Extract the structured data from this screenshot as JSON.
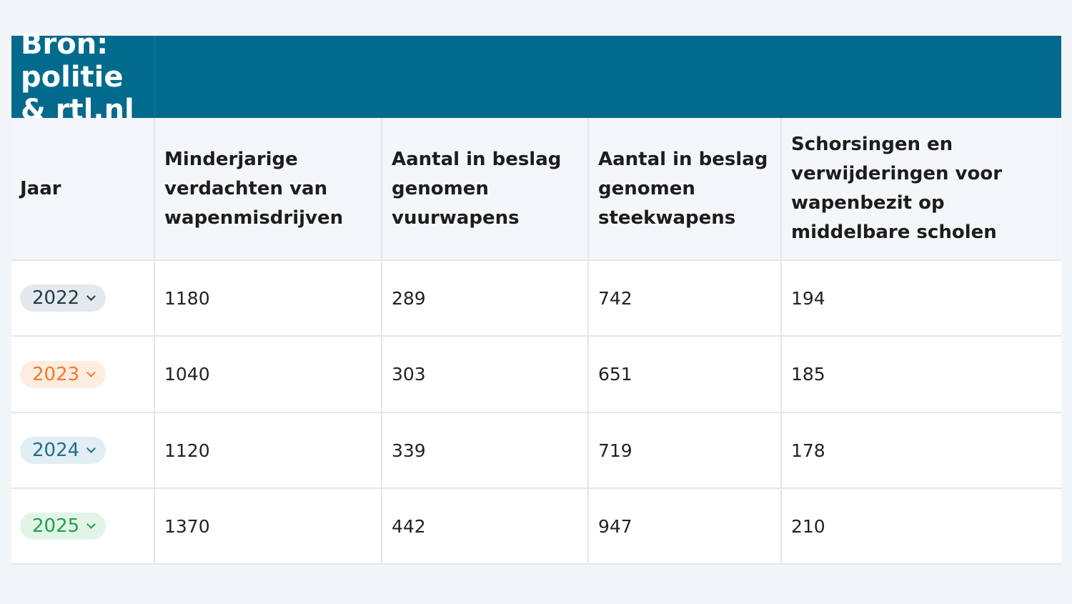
{
  "source_title": "Bron: politie & rtl.nl",
  "headers": [
    "Jaar",
    "Minderjarige verdachten van wapenmisdrijven",
    "Aantal in beslag genomen vuurwapens",
    "Aantal in beslag genomen steekwapens",
    "Schorsingen en verwijderingen voor wapenbezit op middelbare scholen"
  ],
  "rows": [
    {
      "year": "2022",
      "minors": "1180",
      "firearms": "289",
      "knives": "742",
      "suspensions": "194"
    },
    {
      "year": "2023",
      "minors": "1040",
      "firearms": "303",
      "knives": "651",
      "suspensions": "185"
    },
    {
      "year": "2024",
      "minors": "1120",
      "firearms": "339",
      "knives": "719",
      "suspensions": "178"
    },
    {
      "year": "2025",
      "minors": "1370",
      "firearms": "442",
      "knives": "947",
      "suspensions": "210"
    }
  ],
  "year_pill_colors": [
    {
      "text": "#1e3a4c",
      "bg": "#e4e9ed"
    },
    {
      "text": "#f07a2a",
      "bg": "#fdece0"
    },
    {
      "text": "#1c6e94",
      "bg": "#e1eef3"
    },
    {
      "text": "#22a04b",
      "bg": "#e1f4e7"
    }
  ],
  "colors": {
    "title_bar": "#026b8d",
    "header_bg": "#f4f6f9",
    "page_bg": "#f2f5f8"
  }
}
